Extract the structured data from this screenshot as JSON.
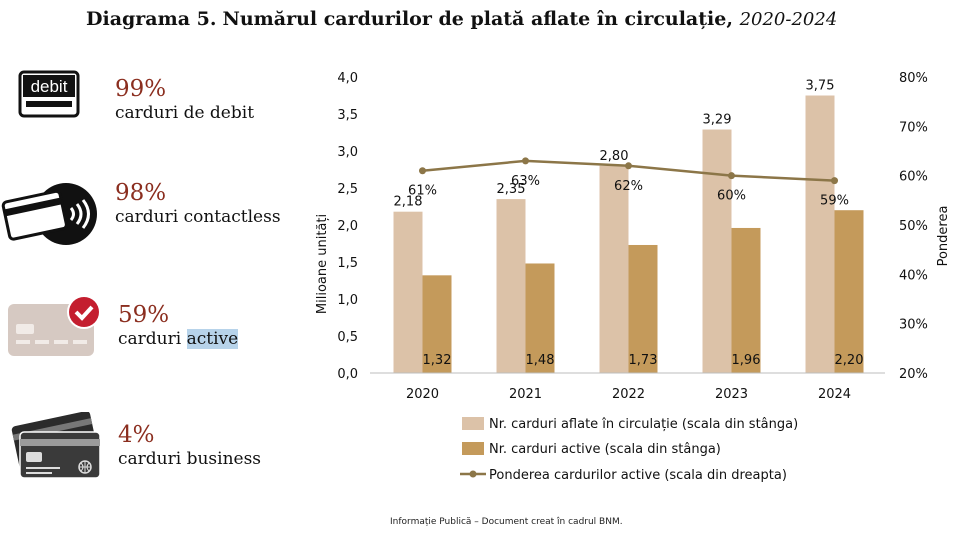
{
  "title": {
    "main_a": "Diagrama 5.",
    "main_b": "Numărul cardurilor de plată aflate în circulație,",
    "years": "2020-2024"
  },
  "stats": [
    {
      "pct": "99%",
      "label": "carduri de debit",
      "icon": "debit-card-icon",
      "icon_text": "debit"
    },
    {
      "pct": "98%",
      "label": "carduri contactless",
      "icon": "contactless-card-icon"
    },
    {
      "pct": "59%",
      "label_a": "carduri ",
      "label_b": "active",
      "icon": "active-card-check-icon"
    },
    {
      "pct": "4%",
      "label": "carduri business",
      "icon": "business-cards-icon"
    }
  ],
  "colors": {
    "issued": "#dcc2a8",
    "active": "#c49a5b",
    "share_line": "#8c7648",
    "accent_text": "#8b2e1f",
    "highlight": "#b7d3ea"
  },
  "chart_data": {
    "type": "bar",
    "categories": [
      "2020",
      "2021",
      "2022",
      "2023",
      "2024"
    ],
    "series": [
      {
        "name": "Nr. carduri aflate în circulație (scala din stânga)",
        "type": "bar",
        "axis": "left",
        "values": [
          2.18,
          2.35,
          2.8,
          3.29,
          3.75
        ],
        "labels": [
          "2,18",
          "2,35",
          "2,80",
          "3,29",
          "3,75"
        ]
      },
      {
        "name": "Nr. carduri active (scala din stânga)",
        "type": "bar",
        "axis": "left",
        "values": [
          1.32,
          1.48,
          1.73,
          1.96,
          2.2
        ],
        "labels": [
          "1,32",
          "1,48",
          "1,73",
          "1,96",
          "2,20"
        ]
      },
      {
        "name": "Ponderea cardurilor active (scala din dreapta)",
        "type": "line",
        "axis": "right",
        "values": [
          61,
          63,
          62,
          60,
          59
        ],
        "labels": [
          "61%",
          "63%",
          "62%",
          "60%",
          "59%"
        ]
      }
    ],
    "ylabel": "Milioane unități",
    "y2label": "Ponderea",
    "ylim": [
      0,
      4.0
    ],
    "y2lim": [
      20,
      80
    ],
    "yticks": [
      "0,0",
      "0,5",
      "1,0",
      "1,5",
      "2,0",
      "2,5",
      "3,0",
      "3,5",
      "4,0"
    ],
    "y2ticks": [
      "20%",
      "30%",
      "40%",
      "50%",
      "60%",
      "70%",
      "80%"
    ],
    "grid": false,
    "legend": "bottom"
  },
  "footer": "Informație Publică – Document creat în cadrul BNM."
}
